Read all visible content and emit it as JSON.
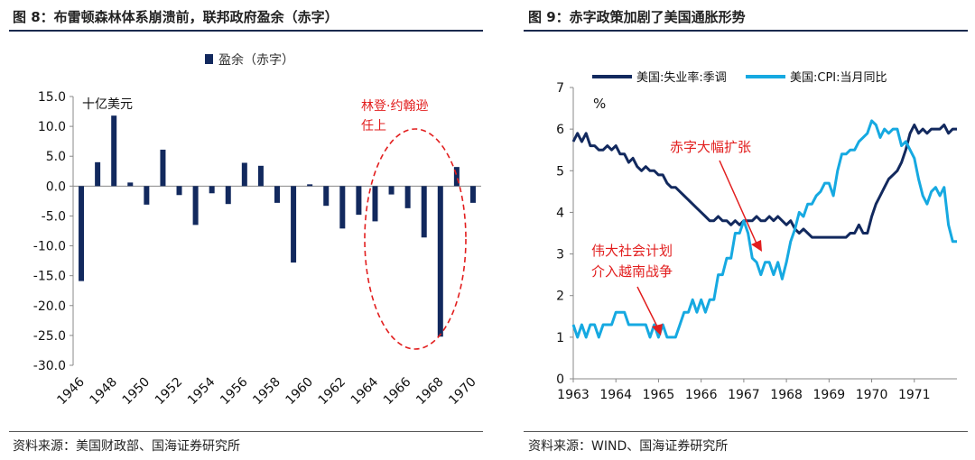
{
  "left_panel": {
    "title": "图 8：布雷顿森林体系崩溃前，联邦政府盈余（赤字）",
    "source": "资料来源：美国财政部、国海证券研究所"
  },
  "right_panel": {
    "title": "图 9：赤字政策加剧了美国通胀形势",
    "source": "资料来源：WIND、国海证券研究所"
  },
  "colors": {
    "navy": "#12295e",
    "sky": "#16a9e1",
    "red": "#e21e1e",
    "rule": "#1b2a4e"
  },
  "chart_data": [
    {
      "type": "bar",
      "title": "盈余（赤字）",
      "unit_label": "十亿美元",
      "legend": "盈余（赤字）",
      "ylim": [
        -30,
        15
      ],
      "yticks": [
        "15.0",
        "10.0",
        "5.0",
        "0.0",
        "-5.0",
        "-10.0",
        "-15.0",
        "-20.0",
        "-25.0",
        "-30.0"
      ],
      "xticks": [
        "1946",
        "1948",
        "1950",
        "1952",
        "1954",
        "1956",
        "1958",
        "1960",
        "1962",
        "1964",
        "1966",
        "1968",
        "1970"
      ],
      "categories": [
        1946,
        1947,
        1948,
        1949,
        1950,
        1951,
        1952,
        1953,
        1954,
        1955,
        1956,
        1957,
        1958,
        1959,
        1960,
        1961,
        1962,
        1963,
        1964,
        1965,
        1966,
        1967,
        1968,
        1969,
        1970
      ],
      "values": [
        -15.9,
        4.0,
        11.8,
        0.6,
        -3.1,
        6.1,
        -1.5,
        -6.5,
        -1.2,
        -3.0,
        3.9,
        3.4,
        -2.8,
        -12.8,
        0.3,
        -3.3,
        -7.1,
        -4.8,
        -5.9,
        -1.4,
        -3.7,
        -8.6,
        -25.2,
        3.2,
        -2.8
      ],
      "annotation": {
        "lines": [
          "林登·约翰逊",
          "任上"
        ]
      }
    },
    {
      "type": "line",
      "percent_label": "%",
      "ylim": [
        0,
        7
      ],
      "yticks": [
        "0",
        "1",
        "2",
        "3",
        "4",
        "5",
        "6",
        "7"
      ],
      "xticks": [
        "1963",
        "1964",
        "1965",
        "1966",
        "1967",
        "1968",
        "1969",
        "1970",
        "1971"
      ],
      "series": [
        {
          "name": "美国:失业率:季调",
          "points": [
            [
              1963.0,
              5.7
            ],
            [
              1963.1,
              5.9
            ],
            [
              1963.2,
              5.7
            ],
            [
              1963.3,
              5.9
            ],
            [
              1963.4,
              5.6
            ],
            [
              1963.5,
              5.6
            ],
            [
              1963.6,
              5.5
            ],
            [
              1963.7,
              5.5
            ],
            [
              1963.8,
              5.6
            ],
            [
              1963.9,
              5.5
            ],
            [
              1964.0,
              5.6
            ],
            [
              1964.1,
              5.4
            ],
            [
              1964.2,
              5.4
            ],
            [
              1964.3,
              5.2
            ],
            [
              1964.4,
              5.3
            ],
            [
              1964.5,
              5.1
            ],
            [
              1964.6,
              5.0
            ],
            [
              1964.7,
              5.1
            ],
            [
              1964.8,
              5.0
            ],
            [
              1964.9,
              5.0
            ],
            [
              1965.0,
              4.9
            ],
            [
              1965.1,
              4.9
            ],
            [
              1965.2,
              4.7
            ],
            [
              1965.3,
              4.6
            ],
            [
              1965.4,
              4.6
            ],
            [
              1965.5,
              4.5
            ],
            [
              1965.6,
              4.4
            ],
            [
              1965.7,
              4.3
            ],
            [
              1965.8,
              4.2
            ],
            [
              1965.9,
              4.1
            ],
            [
              1966.0,
              4.0
            ],
            [
              1966.1,
              3.9
            ],
            [
              1966.2,
              3.8
            ],
            [
              1966.3,
              3.8
            ],
            [
              1966.4,
              3.9
            ],
            [
              1966.5,
              3.8
            ],
            [
              1966.6,
              3.8
            ],
            [
              1966.7,
              3.7
            ],
            [
              1966.8,
              3.8
            ],
            [
              1966.9,
              3.7
            ],
            [
              1967.0,
              3.8
            ],
            [
              1967.1,
              3.8
            ],
            [
              1967.2,
              3.8
            ],
            [
              1967.3,
              3.9
            ],
            [
              1967.4,
              3.8
            ],
            [
              1967.5,
              3.8
            ],
            [
              1967.6,
              3.9
            ],
            [
              1967.7,
              3.8
            ],
            [
              1967.8,
              3.9
            ],
            [
              1967.9,
              3.8
            ],
            [
              1968.0,
              3.7
            ],
            [
              1968.1,
              3.8
            ],
            [
              1968.2,
              3.6
            ],
            [
              1968.3,
              3.5
            ],
            [
              1968.4,
              3.6
            ],
            [
              1968.5,
              3.5
            ],
            [
              1968.6,
              3.4
            ],
            [
              1968.8,
              3.4
            ],
            [
              1969.0,
              3.4
            ],
            [
              1969.2,
              3.4
            ],
            [
              1969.4,
              3.4
            ],
            [
              1969.5,
              3.5
            ],
            [
              1969.6,
              3.5
            ],
            [
              1969.7,
              3.7
            ],
            [
              1969.8,
              3.5
            ],
            [
              1969.9,
              3.5
            ],
            [
              1970.0,
              3.9
            ],
            [
              1970.1,
              4.2
            ],
            [
              1970.2,
              4.4
            ],
            [
              1970.3,
              4.6
            ],
            [
              1970.4,
              4.8
            ],
            [
              1970.5,
              4.9
            ],
            [
              1970.6,
              5.0
            ],
            [
              1970.7,
              5.2
            ],
            [
              1970.8,
              5.5
            ],
            [
              1970.9,
              5.9
            ],
            [
              1971.0,
              6.1
            ],
            [
              1971.1,
              5.9
            ],
            [
              1971.2,
              6.0
            ],
            [
              1971.3,
              5.9
            ],
            [
              1971.4,
              6.0
            ],
            [
              1971.5,
              6.0
            ],
            [
              1971.6,
              6.0
            ],
            [
              1971.7,
              6.1
            ],
            [
              1971.8,
              5.9
            ],
            [
              1971.9,
              6.0
            ],
            [
              1972.0,
              6.0
            ]
          ]
        },
        {
          "name": "美国:CPI:当月同比",
          "points": [
            [
              1963.0,
              1.3
            ],
            [
              1963.1,
              1.0
            ],
            [
              1963.2,
              1.3
            ],
            [
              1963.3,
              1.0
            ],
            [
              1963.4,
              1.3
            ],
            [
              1963.5,
              1.3
            ],
            [
              1963.6,
              1.0
            ],
            [
              1963.7,
              1.3
            ],
            [
              1963.8,
              1.3
            ],
            [
              1963.9,
              1.3
            ],
            [
              1964.0,
              1.6
            ],
            [
              1964.1,
              1.6
            ],
            [
              1964.2,
              1.6
            ],
            [
              1964.3,
              1.3
            ],
            [
              1964.4,
              1.3
            ],
            [
              1964.5,
              1.3
            ],
            [
              1964.6,
              1.3
            ],
            [
              1964.7,
              1.3
            ],
            [
              1964.8,
              1.0
            ],
            [
              1964.9,
              1.3
            ],
            [
              1965.0,
              1.0
            ],
            [
              1965.1,
              1.3
            ],
            [
              1965.2,
              1.0
            ],
            [
              1965.3,
              1.0
            ],
            [
              1965.4,
              1.0
            ],
            [
              1965.5,
              1.3
            ],
            [
              1965.6,
              1.6
            ],
            [
              1965.7,
              1.6
            ],
            [
              1965.8,
              1.9
            ],
            [
              1965.9,
              1.6
            ],
            [
              1966.0,
              1.9
            ],
            [
              1966.1,
              1.6
            ],
            [
              1966.2,
              1.9
            ],
            [
              1966.3,
              1.9
            ],
            [
              1966.4,
              2.5
            ],
            [
              1966.5,
              2.5
            ],
            [
              1966.6,
              2.9
            ],
            [
              1966.7,
              2.9
            ],
            [
              1966.8,
              3.5
            ],
            [
              1966.9,
              3.5
            ],
            [
              1967.0,
              3.8
            ],
            [
              1967.1,
              3.5
            ],
            [
              1967.2,
              2.9
            ],
            [
              1967.3,
              2.8
            ],
            [
              1967.4,
              2.5
            ],
            [
              1967.5,
              2.8
            ],
            [
              1967.6,
              2.8
            ],
            [
              1967.7,
              2.5
            ],
            [
              1967.8,
              2.8
            ],
            [
              1967.9,
              2.4
            ],
            [
              1968.0,
              2.8
            ],
            [
              1968.1,
              3.3
            ],
            [
              1968.2,
              3.6
            ],
            [
              1968.3,
              4.0
            ],
            [
              1968.4,
              3.9
            ],
            [
              1968.5,
              4.2
            ],
            [
              1968.6,
              4.2
            ],
            [
              1968.7,
              4.4
            ],
            [
              1968.8,
              4.5
            ],
            [
              1968.9,
              4.7
            ],
            [
              1969.0,
              4.7
            ],
            [
              1969.1,
              4.4
            ],
            [
              1969.2,
              5.0
            ],
            [
              1969.3,
              5.4
            ],
            [
              1969.4,
              5.4
            ],
            [
              1969.5,
              5.5
            ],
            [
              1969.6,
              5.5
            ],
            [
              1969.7,
              5.7
            ],
            [
              1969.8,
              5.8
            ],
            [
              1969.9,
              5.9
            ],
            [
              1970.0,
              6.2
            ],
            [
              1970.1,
              6.1
            ],
            [
              1970.2,
              5.8
            ],
            [
              1970.3,
              6.0
            ],
            [
              1970.4,
              5.9
            ],
            [
              1970.5,
              6.0
            ],
            [
              1970.6,
              6.0
            ],
            [
              1970.7,
              5.6
            ],
            [
              1970.8,
              5.7
            ],
            [
              1970.9,
              5.5
            ],
            [
              1971.0,
              5.3
            ],
            [
              1971.1,
              4.8
            ],
            [
              1971.2,
              4.4
            ],
            [
              1971.3,
              4.2
            ],
            [
              1971.4,
              4.5
            ],
            [
              1971.5,
              4.6
            ],
            [
              1971.6,
              4.4
            ],
            [
              1971.7,
              4.6
            ],
            [
              1971.8,
              3.7
            ],
            [
              1971.9,
              3.3
            ],
            [
              1972.0,
              3.3
            ]
          ]
        }
      ],
      "annotations": [
        {
          "text": "赤字大幅扩张"
        },
        {
          "lines": [
            "伟大社会计划",
            "介入越南战争"
          ]
        }
      ]
    }
  ]
}
